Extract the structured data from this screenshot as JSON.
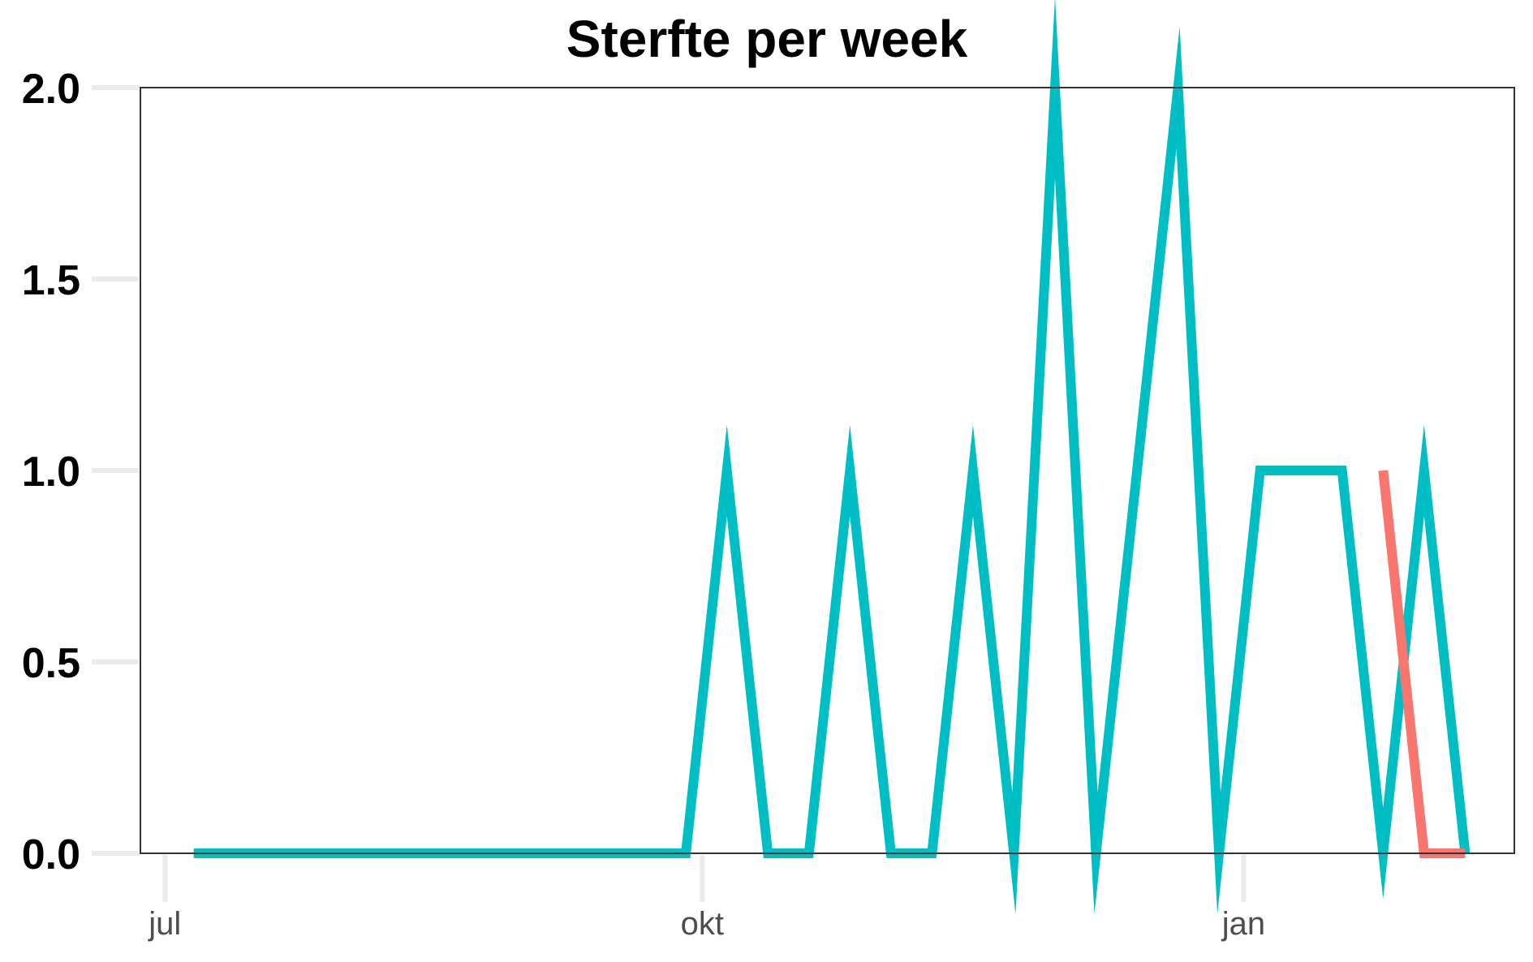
{
  "chart_data": {
    "type": "line",
    "title": "Sterfte per week",
    "xlabel": "",
    "ylabel": "",
    "x_ticks": [
      "jul",
      "okt",
      "jan"
    ],
    "y_ticks": [
      "0.0",
      "0.5",
      "1.0",
      "1.5",
      "2.0"
    ],
    "ylim": [
      0,
      2
    ],
    "xlim_weeks": [
      -0.6,
      32.9
    ],
    "grid": false,
    "legend": "none",
    "series": [
      {
        "color": "#00BFC4",
        "x": [
          0.7,
          1.7,
          2.7,
          3.7,
          4.7,
          5.7,
          6.7,
          7.7,
          8.7,
          9.7,
          10.7,
          11.7,
          12.7,
          13.7,
          14.7,
          15.7,
          16.7,
          17.7,
          18.7,
          19.7,
          20.7,
          21.7,
          22.7,
          23.7,
          24.7,
          25.7,
          26.7,
          27.7,
          28.7,
          29.7,
          30.7,
          31.7
        ],
        "values": [
          0,
          0,
          0,
          0,
          0,
          0,
          0,
          0,
          0,
          0,
          0,
          0,
          0,
          1,
          0,
          0,
          1,
          0,
          0,
          1,
          0,
          2,
          0,
          1,
          2,
          0,
          1,
          1,
          1,
          0,
          1,
          0
        ]
      },
      {
        "color": "#F8766D",
        "x": [
          29.7,
          30.7,
          31.7
        ],
        "values": [
          1,
          0,
          0
        ]
      }
    ]
  }
}
